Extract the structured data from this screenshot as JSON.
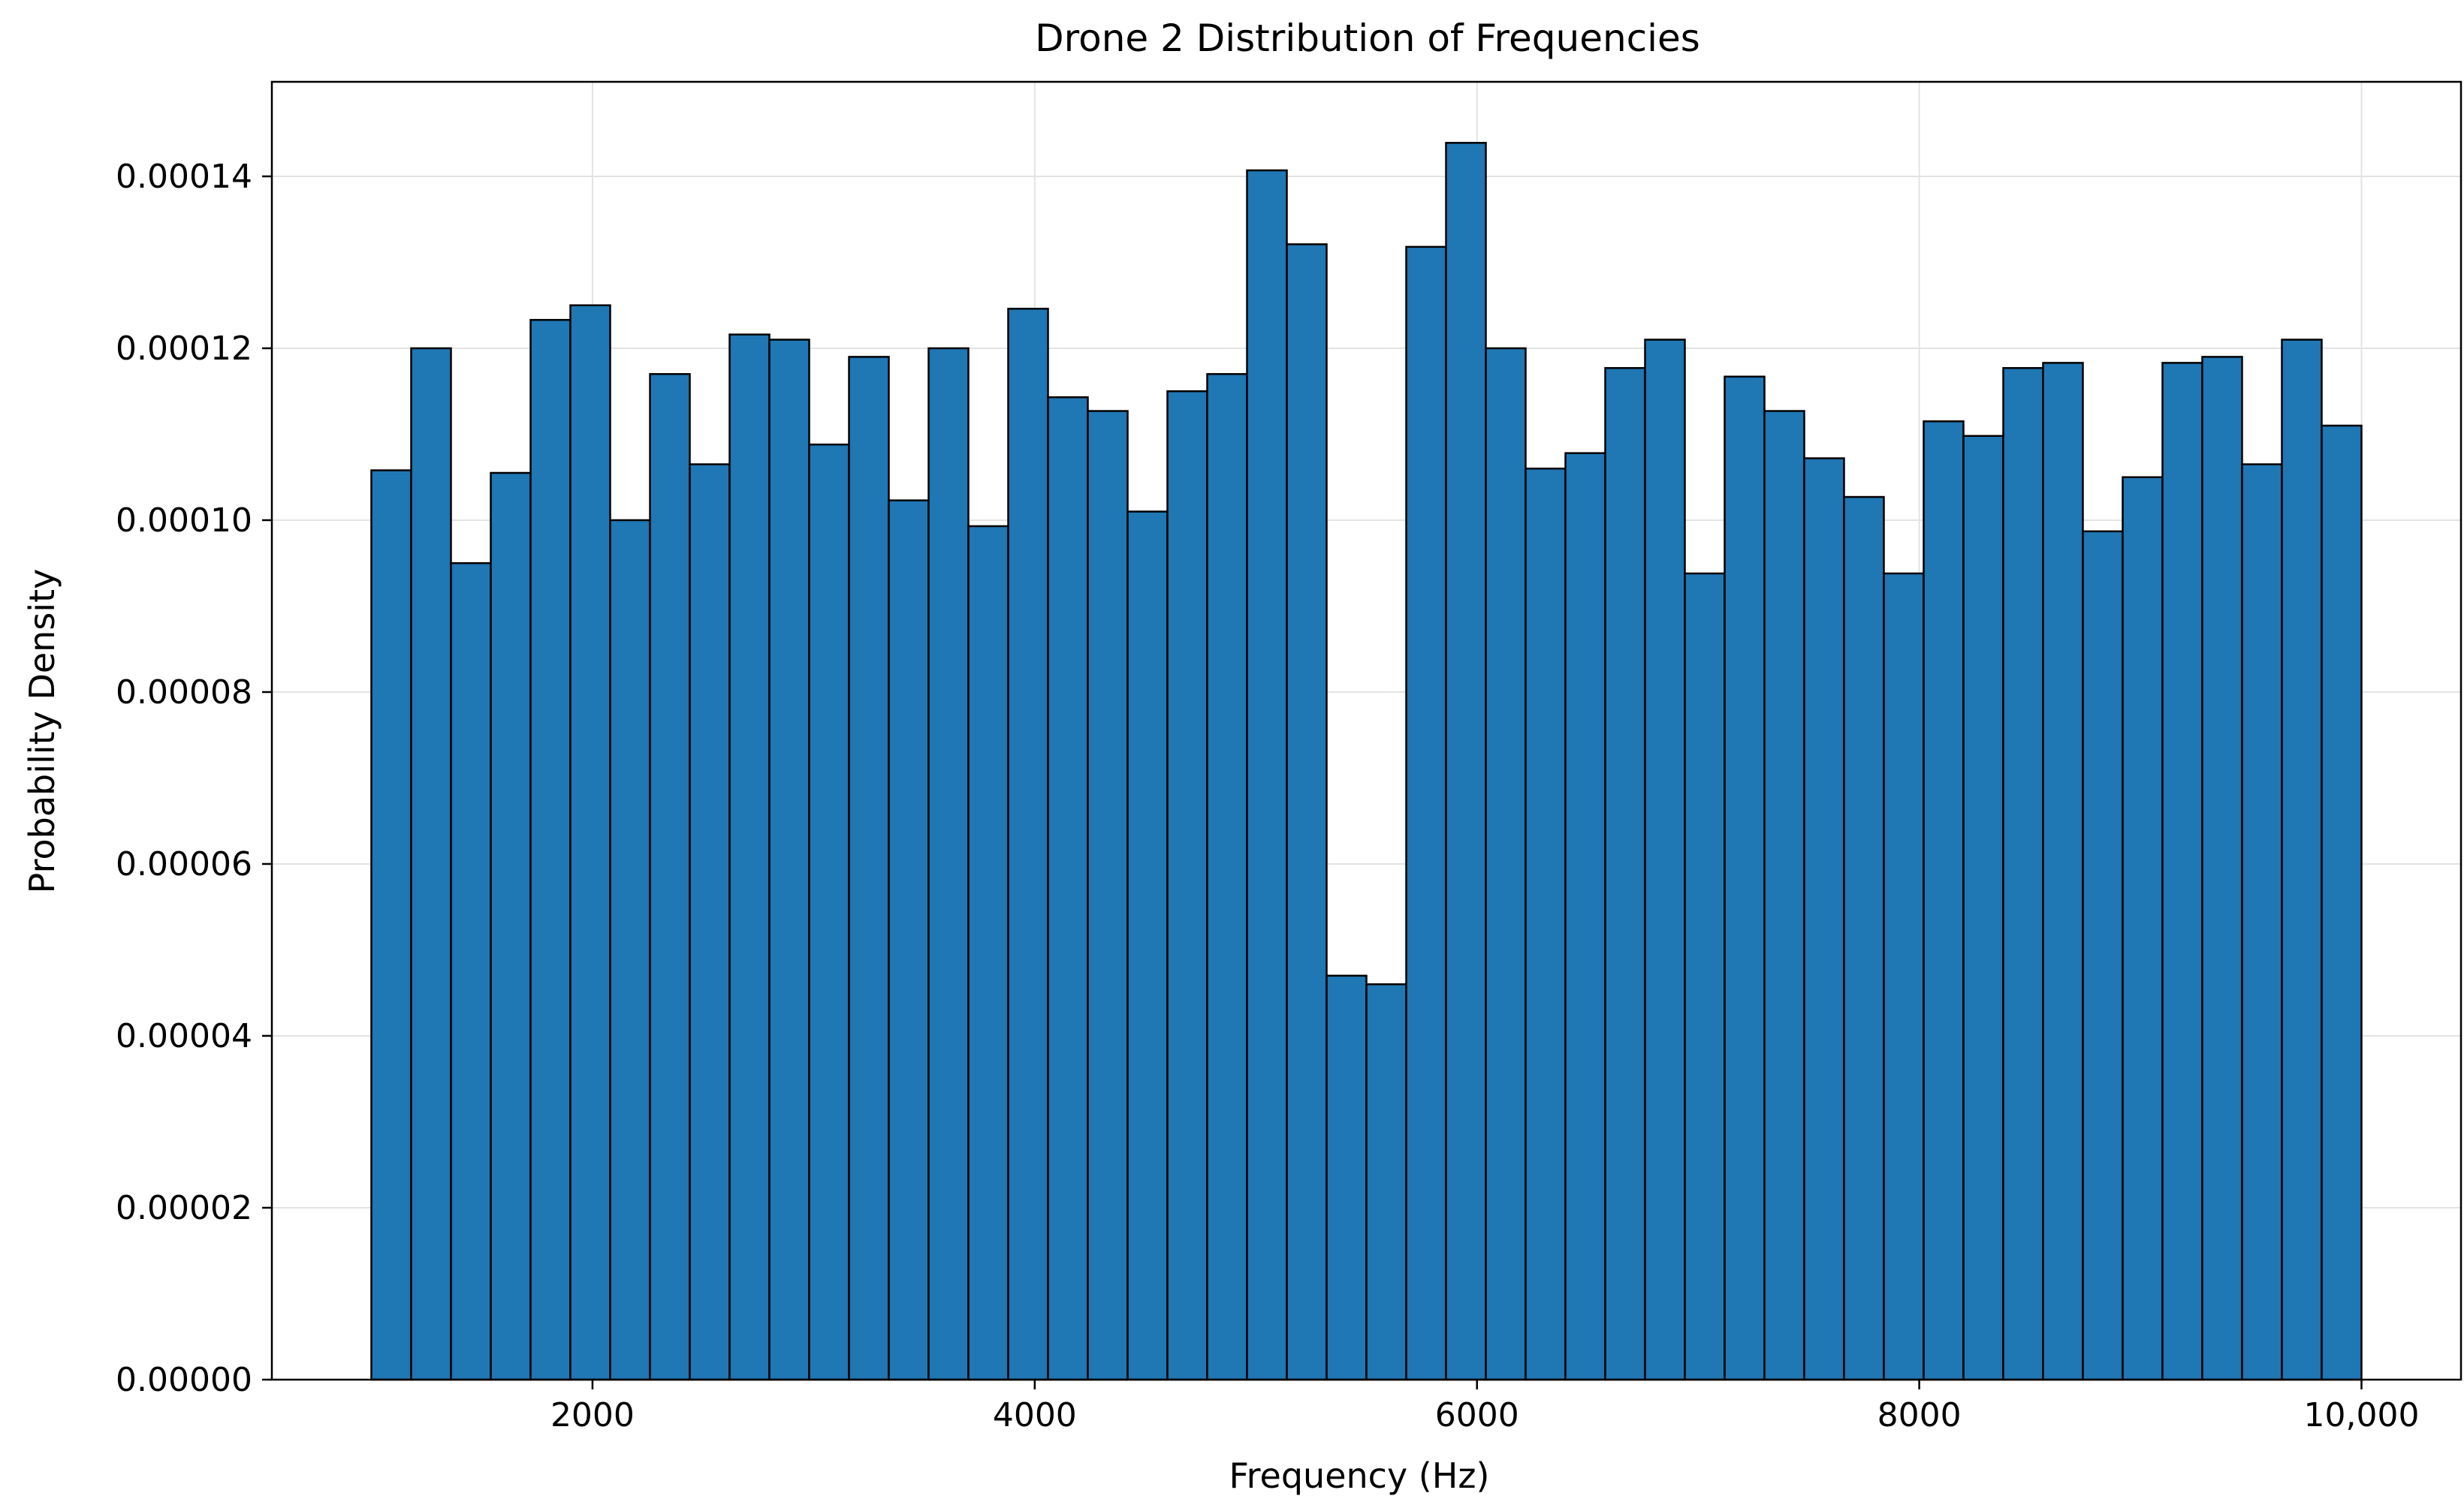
{
  "chart_data": {
    "type": "bar",
    "title": "Drone 2 Distribution of Frequencies",
    "xlabel": "Frequency (Hz)",
    "ylabel": "Probability Density",
    "xlim": [
      550,
      10450
    ],
    "ylim": [
      0,
      0.000151
    ],
    "bin_start": 1000,
    "bin_end": 10000,
    "values": [
      0.0001058,
      0.00012,
      9.5e-05,
      0.0001055,
      0.0001233,
      0.000125,
      0.0001,
      0.000117,
      0.0001065,
      0.0001216,
      0.000121,
      0.0001088,
      0.000119,
      0.0001023,
      0.00012,
      9.93e-05,
      0.0001246,
      0.0001143,
      0.0001127,
      0.000101,
      0.000115,
      0.000117,
      0.0001407,
      0.0001321,
      4.7e-05,
      4.6e-05,
      0.0001318,
      0.0001439,
      0.00012,
      0.000106,
      0.0001078,
      0.0001177,
      0.000121,
      9.38e-05,
      0.0001167,
      0.0001127,
      0.0001072,
      0.0001027,
      9.38e-05,
      0.0001115,
      0.0001098,
      0.0001177,
      0.0001183,
      9.87e-05,
      0.000105,
      0.0001183,
      0.000119,
      0.0001065,
      0.000121,
      0.000111
    ],
    "x_ticks": [
      2000,
      4000,
      6000,
      8000,
      10000
    ],
    "x_tick_labels": [
      "2000",
      "4000",
      "6000",
      "8000",
      "10,000"
    ],
    "y_ticks": [
      0,
      2e-05,
      4e-05,
      6e-05,
      8e-05,
      0.0001,
      0.00012,
      0.00014
    ],
    "y_tick_labels": [
      "0.00000",
      "0.00002",
      "0.00004",
      "0.00006",
      "0.00008",
      "0.00010",
      "0.00012",
      "0.00014"
    ],
    "grid": true,
    "colors": {
      "bar_fill": "#1f77b4",
      "bar_edge": "#000000",
      "grid": "#e3e3e3",
      "axis": "#000000"
    }
  }
}
